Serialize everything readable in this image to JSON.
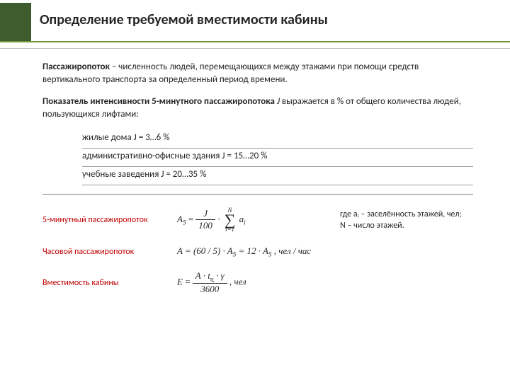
{
  "colors": {
    "titleAccent": "#3e5c2d",
    "titleUnderline": "#77933c",
    "text": "#262626",
    "label": "#c00000",
    "rule": "#9b9b9b"
  },
  "title": "Определение требуемой вместимости кабины",
  "p1": {
    "bold": "Пассажиропоток",
    "rest": " – численность людей, перемещающихся между этажами при помощи средств вертикального транспорта за определенный период времени."
  },
  "p2": {
    "bold": "Показатель интенсивности 5-минутного пассажиропотока",
    "italic": " J ",
    "rest": "выражается в % от общего количества людей, пользующихся лифтами:"
  },
  "list": {
    "i1": "жилые дома  J = 3…6 %",
    "i2": "административно-офисные здания  J = 15…20 %",
    "i3": "учебные заведения  J = 20…35 %"
  },
  "rows": {
    "r1": {
      "label": "5-минутный пассажиропоток",
      "explain_line1": "где aᵢ – заселённость этажей, чел;",
      "explain_line2": "N – число этажей."
    },
    "r2": {
      "label": "Часовой пассажиропоток",
      "unit": "чел / час"
    },
    "r3": {
      "label": "Вместимость кабины",
      "unit": "чел"
    }
  },
  "formulas": {
    "A5_lhs": "A",
    "A5_sub": "5",
    "frac1_num": "J",
    "frac1_den": "100",
    "sum_top": "N",
    "sum_bot": "i=1",
    "sum_arg_a": "a",
    "sum_arg_i": "i",
    "A_eq": "A = (60 / 5) · A",
    "A_eq_sub": "5",
    "A_eq2": " = 12 · A",
    "A_eq2_sub": "5",
    "E_lhs": "E",
    "E_num_a": "A · t",
    "E_num_sub": "ц",
    "E_num_b": " · γ",
    "E_den": "3600"
  }
}
